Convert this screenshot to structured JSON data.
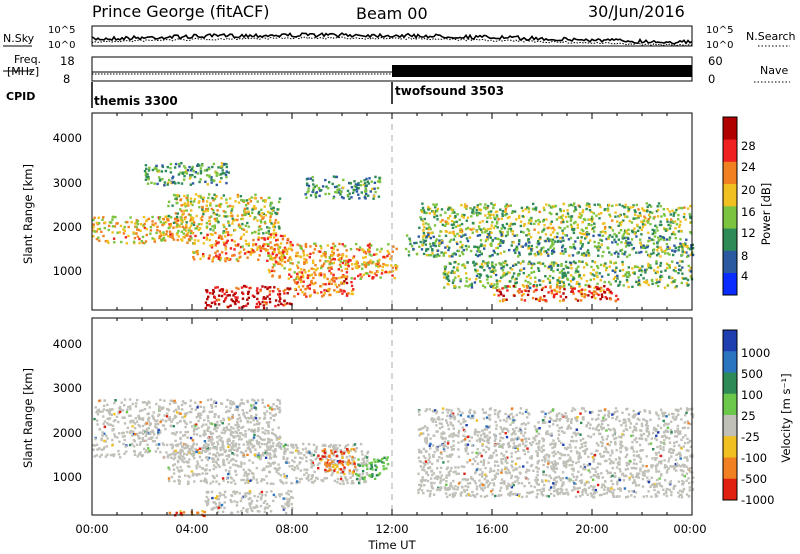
{
  "header": {
    "station": "Prince George (fitACF)",
    "beam": "Beam 00",
    "date": "30/Jun/2016"
  },
  "noise_panel": {
    "left_label": "N.Sky",
    "right_label": "N.Search",
    "left_ticks": [
      "10^5",
      "10^0"
    ],
    "right_ticks": [
      "10^5",
      "10^0"
    ]
  },
  "freq_panel": {
    "left_label_1": "Freq.",
    "left_label_2": "[MHz]",
    "right_label": "Nave",
    "left_ticks": [
      "18",
      "8"
    ],
    "right_ticks": [
      "60",
      "0"
    ]
  },
  "cpid": {
    "label": "CPID",
    "modes": [
      {
        "name": "themis 3300",
        "start_hour": 0
      },
      {
        "name": "twofsound 3503",
        "start_hour": 12
      }
    ]
  },
  "chart_data": [
    {
      "type": "heatmap",
      "panel": "power",
      "ylabel": "Slant Range [km]",
      "xlabel": "",
      "xlim_hours": [
        0,
        24
      ],
      "ylim": [
        180,
        4600
      ],
      "yticks": [
        "1000",
        "2000",
        "3000",
        "4000"
      ],
      "xticks": [
        "00:00",
        "04:00",
        "08:00",
        "12:00",
        "16:00",
        "20:00",
        "00:00"
      ],
      "colorbar": {
        "label": "Power [dB]",
        "ticks": [
          "4",
          "8",
          "12",
          "16",
          "20",
          "24",
          "28"
        ],
        "colors": [
          "#0a2cff",
          "#2c5aa0",
          "#2e8b57",
          "#7cc340",
          "#f0c020",
          "#f08020",
          "#ee2020",
          "#b00000"
        ]
      },
      "echo_bands": [
        {
          "t0": 0.0,
          "t1": 4.0,
          "r0": 1700,
          "r1": 2300,
          "level": 0.6
        },
        {
          "t0": 3.0,
          "t1": 7.5,
          "r0": 1900,
          "r1": 2800,
          "level": 0.5
        },
        {
          "t0": 4.0,
          "t1": 8.0,
          "r0": 1300,
          "r1": 1900,
          "level": 0.7
        },
        {
          "t0": 7.0,
          "t1": 12.2,
          "r0": 900,
          "r1": 1700,
          "level": 0.65
        },
        {
          "t0": 4.5,
          "t1": 8.0,
          "r0": 250,
          "r1": 750,
          "level": 0.95
        },
        {
          "t0": 8.0,
          "t1": 10.5,
          "r0": 500,
          "r1": 1000,
          "level": 0.75
        },
        {
          "t0": 2.0,
          "t1": 5.5,
          "r0": 3000,
          "r1": 3500,
          "level": 0.35
        },
        {
          "t0": 8.5,
          "t1": 11.5,
          "r0": 2700,
          "r1": 3200,
          "level": 0.3
        },
        {
          "t0": 13.0,
          "t1": 24.0,
          "r0": 1900,
          "r1": 2600,
          "level": 0.45
        },
        {
          "t0": 14.0,
          "t1": 24.0,
          "r0": 700,
          "r1": 1300,
          "level": 0.4
        },
        {
          "t0": 16.0,
          "t1": 21.0,
          "r0": 400,
          "r1": 750,
          "level": 0.8
        },
        {
          "t0": 12.5,
          "t1": 24.0,
          "r0": 1400,
          "r1": 1900,
          "level": 0.35
        }
      ]
    },
    {
      "type": "heatmap",
      "panel": "velocity",
      "ylabel": "Slant Range [km]",
      "xlabel": "Time UT",
      "xlim_hours": [
        0,
        24
      ],
      "ylim": [
        180,
        4600
      ],
      "yticks": [
        "1000",
        "2000",
        "3000",
        "4000"
      ],
      "xticks": [
        "00:00",
        "04:00",
        "08:00",
        "12:00",
        "16:00",
        "20:00",
        "00:00"
      ],
      "colorbar": {
        "label": "Velocity [m s⁻¹]",
        "ticks": [
          "1000",
          "500",
          "100",
          "25",
          "-25",
          "-100",
          "-500",
          "-1000"
        ],
        "colors": [
          "#1f3fb0",
          "#2a74c0",
          "#2e8b57",
          "#6cc84a",
          "#c0c0b8",
          "#f0c020",
          "#f08020",
          "#e02010"
        ]
      },
      "echo_bands": [
        {
          "t0": 0.0,
          "t1": 7.5,
          "r0": 1500,
          "r1": 2800,
          "level": 0.5
        },
        {
          "t0": 3.0,
          "t1": 11.0,
          "r0": 900,
          "r1": 1800,
          "level": 0.5
        },
        {
          "t0": 4.5,
          "t1": 8.0,
          "r0": 250,
          "r1": 750,
          "level": 0.5
        },
        {
          "t0": 9.0,
          "t1": 10.5,
          "r0": 1150,
          "r1": 1700,
          "level": 0.9
        },
        {
          "t0": 10.5,
          "t1": 11.8,
          "r0": 1000,
          "r1": 1500,
          "level": 0.2
        },
        {
          "t0": 13.0,
          "t1": 24.0,
          "r0": 600,
          "r1": 2600,
          "level": 0.5
        },
        {
          "t0": 3.0,
          "t1": 4.5,
          "r0": 180,
          "r1": 300,
          "level": 0.85
        }
      ]
    }
  ]
}
